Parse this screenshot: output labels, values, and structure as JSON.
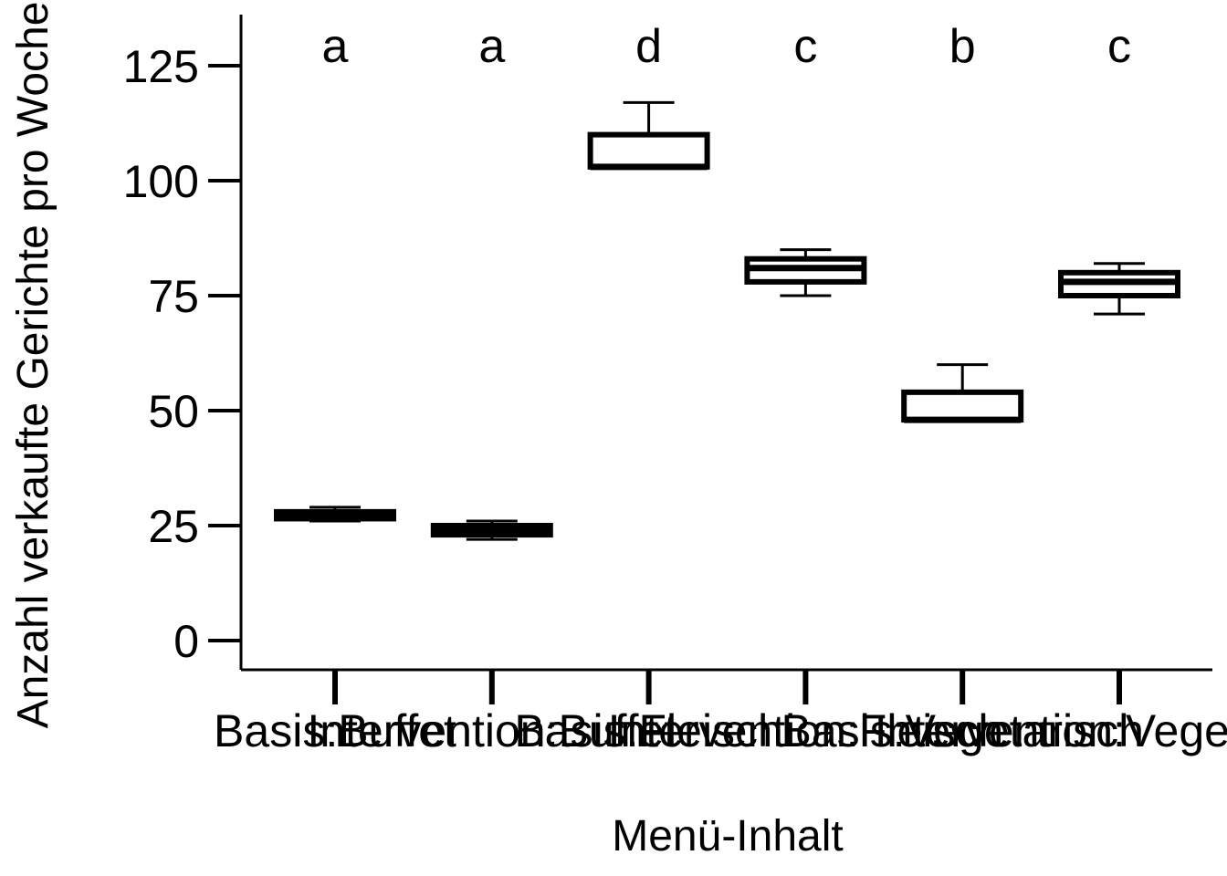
{
  "chart_data": {
    "type": "box",
    "title": "",
    "xlabel": "Menü-Inhalt",
    "ylabel": "Anzahl verkaufte Gerichte pro Woche",
    "ylim": [
      -6,
      137
    ],
    "yticks": [
      0,
      25,
      50,
      75,
      100,
      125
    ],
    "ytick_labels": [
      "0",
      "25",
      "50",
      "75",
      "100",
      "125"
    ],
    "grid": false,
    "legend": "none",
    "categories": [
      "Basis:Buffet",
      "Intervention:Buffet",
      "Basis:Fleisch",
      "Intervention:Fleisch",
      "Basis:Vegetarisch",
      "Intervention:Vegetarisch"
    ],
    "significance_letters": [
      "a",
      "a",
      "d",
      "c",
      "b",
      "c"
    ],
    "boxes": [
      {
        "min": 26,
        "q1": 26.5,
        "median": 27,
        "q3": 28,
        "max": 29
      },
      {
        "min": 22,
        "q1": 23,
        "median": 24,
        "q3": 25,
        "max": 26
      },
      {
        "min": 103,
        "q1": 103,
        "median": 103,
        "q3": 110,
        "max": 117
      },
      {
        "min": 75,
        "q1": 78,
        "median": 81,
        "q3": 83,
        "max": 85
      },
      {
        "min": 48,
        "q1": 48,
        "median": 48,
        "q3": 54,
        "max": 60
      },
      {
        "min": 71,
        "q1": 75,
        "median": 78,
        "q3": 80,
        "max": 82
      }
    ],
    "colors": {
      "stroke": "#000000",
      "fill": "#ffffff"
    }
  }
}
